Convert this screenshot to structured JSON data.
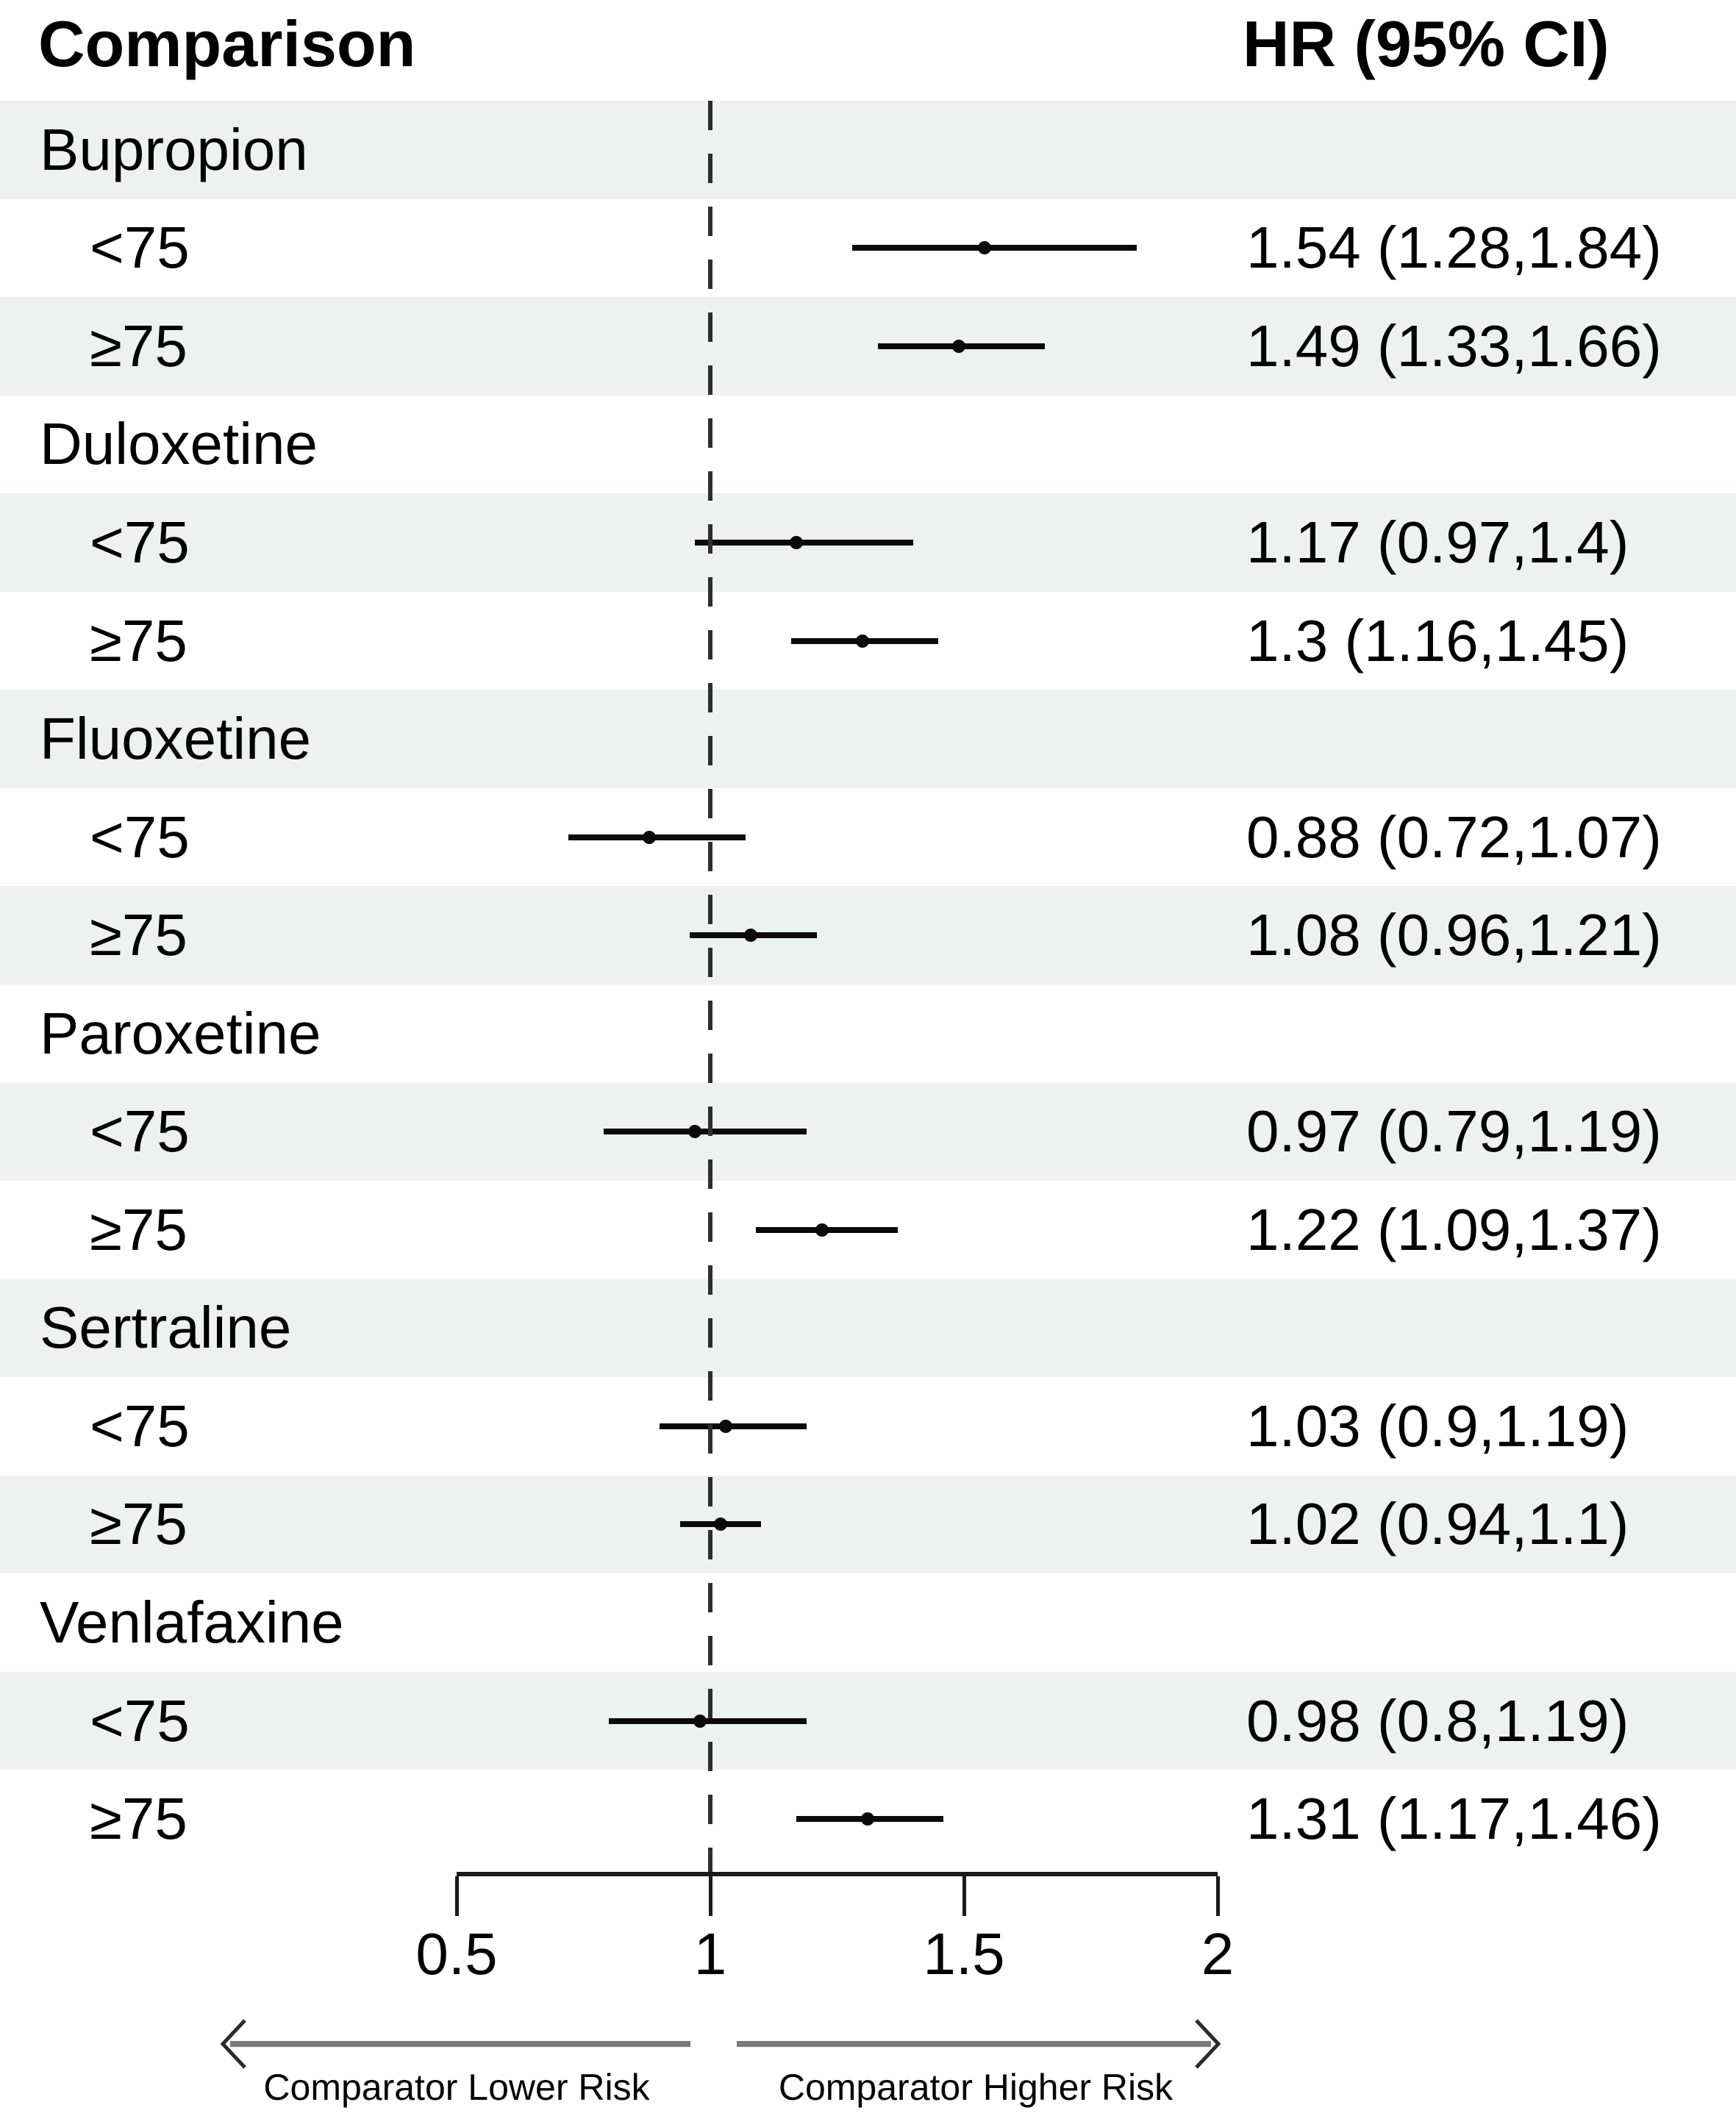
{
  "header": {
    "comparison": "Comparison",
    "hr_ci": "HR (95% CI)"
  },
  "style": {
    "row_shade": "#edf1ef",
    "marker_color": "#0a0a0a",
    "arrow_color": "#7a7a7a",
    "text_color": "#000000"
  },
  "chart_data": {
    "type": "forest",
    "title": "",
    "xlabel": "",
    "x_axis": {
      "ticks": [
        0.5,
        1,
        1.5,
        2
      ],
      "tick_labels": [
        "0.5",
        "1",
        "1.5",
        "2"
      ],
      "range": [
        0.5,
        2
      ],
      "reference_line": 1,
      "scale": "linear",
      "grid": false
    },
    "direction_labels": {
      "left": "Comparator Lower Risk",
      "right": "Comparator Higher Risk"
    },
    "groups": [
      {
        "drug": "Bupropion",
        "rows": [
          {
            "age": "<75",
            "hr": 1.54,
            "ci_low": 1.28,
            "ci_high": 1.84,
            "label": "1.54 (1.28,1.84)"
          },
          {
            "age": "≥75",
            "hr": 1.49,
            "ci_low": 1.33,
            "ci_high": 1.66,
            "label": "1.49 (1.33,1.66)"
          }
        ]
      },
      {
        "drug": "Duloxetine",
        "rows": [
          {
            "age": "<75",
            "hr": 1.17,
            "ci_low": 0.97,
            "ci_high": 1.4,
            "label": "1.17 (0.97,1.4)"
          },
          {
            "age": "≥75",
            "hr": 1.3,
            "ci_low": 1.16,
            "ci_high": 1.45,
            "label": "1.3 (1.16,1.45)"
          }
        ]
      },
      {
        "drug": "Fluoxetine",
        "rows": [
          {
            "age": "<75",
            "hr": 0.88,
            "ci_low": 0.72,
            "ci_high": 1.07,
            "label": "0.88 (0.72,1.07)"
          },
          {
            "age": "≥75",
            "hr": 1.08,
            "ci_low": 0.96,
            "ci_high": 1.21,
            "label": "1.08 (0.96,1.21)"
          }
        ]
      },
      {
        "drug": "Paroxetine",
        "rows": [
          {
            "age": "<75",
            "hr": 0.97,
            "ci_low": 0.79,
            "ci_high": 1.19,
            "label": "0.97 (0.79,1.19)"
          },
          {
            "age": "≥75",
            "hr": 1.22,
            "ci_low": 1.09,
            "ci_high": 1.37,
            "label": "1.22 (1.09,1.37)"
          }
        ]
      },
      {
        "drug": "Sertraline",
        "rows": [
          {
            "age": "<75",
            "hr": 1.03,
            "ci_low": 0.9,
            "ci_high": 1.19,
            "label": "1.03 (0.9,1.19)"
          },
          {
            "age": "≥75",
            "hr": 1.02,
            "ci_low": 0.94,
            "ci_high": 1.1,
            "label": "1.02 (0.94,1.1)"
          }
        ]
      },
      {
        "drug": "Venlafaxine",
        "rows": [
          {
            "age": "<75",
            "hr": 0.98,
            "ci_low": 0.8,
            "ci_high": 1.19,
            "label": "0.98 (0.8,1.19)"
          },
          {
            "age": "≥75",
            "hr": 1.31,
            "ci_low": 1.17,
            "ci_high": 1.46,
            "label": "1.31 (1.17,1.46)"
          }
        ]
      }
    ]
  }
}
